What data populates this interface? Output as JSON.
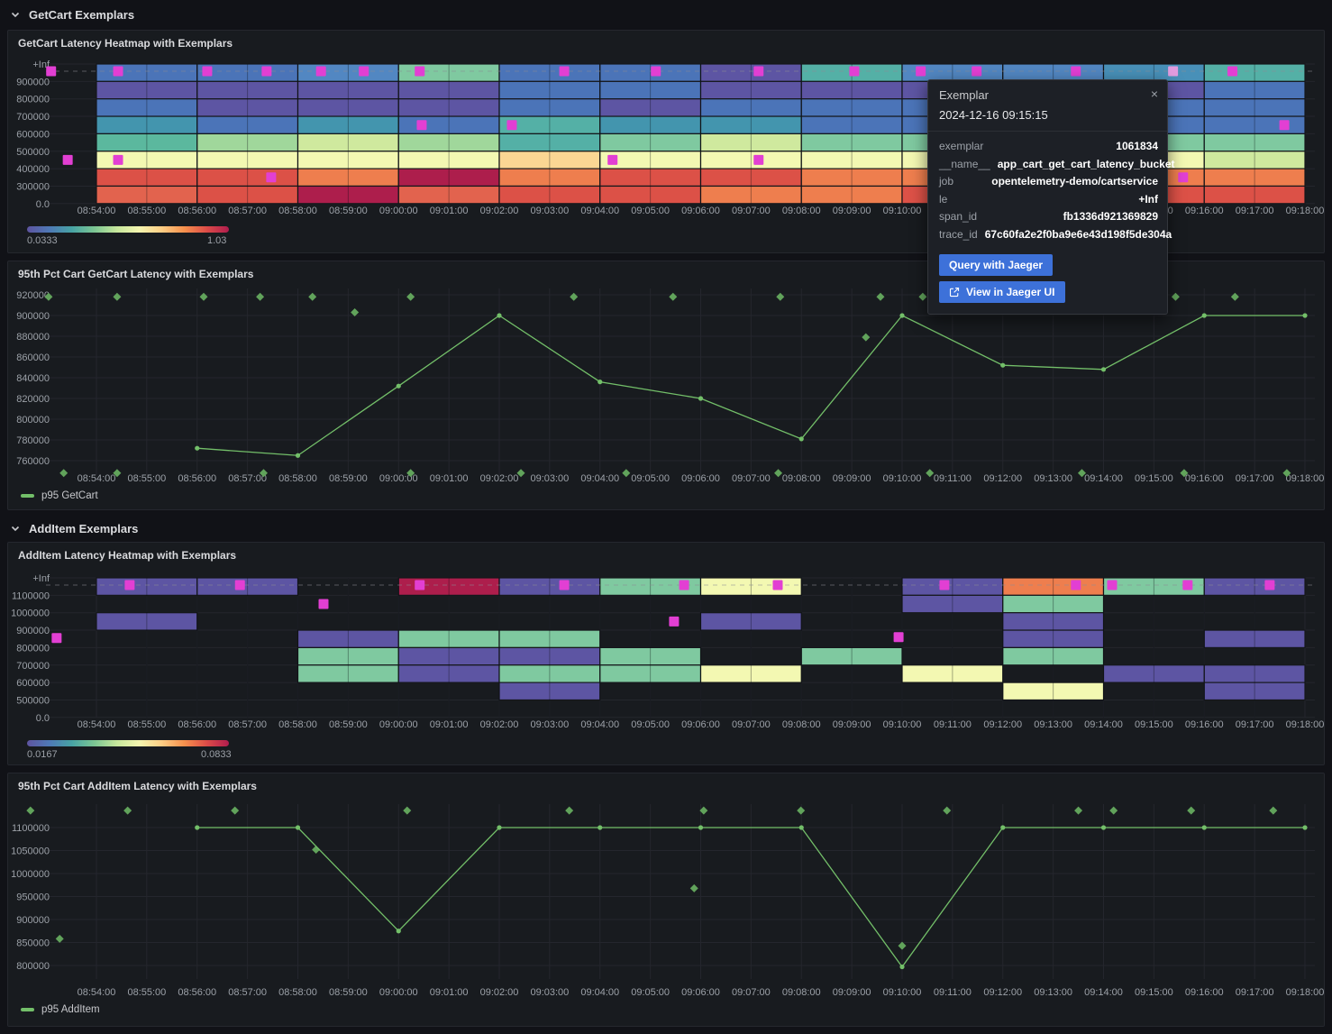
{
  "page": {
    "background": "#111217",
    "panel_background": "#181b1f",
    "panel_border": "#25272e"
  },
  "sections": [
    {
      "title": "GetCart Exemplars"
    },
    {
      "title": "AddItem Exemplars"
    }
  ],
  "time_axis": {
    "labels": [
      "08:54:00",
      "08:55:00",
      "08:56:00",
      "08:57:00",
      "08:58:00",
      "08:59:00",
      "09:00:00",
      "09:01:00",
      "09:02:00",
      "09:03:00",
      "09:04:00",
      "09:05:00",
      "09:06:00",
      "09:07:00",
      "09:08:00",
      "09:09:00",
      "09:10:00",
      "09:11:00",
      "09:12:00",
      "09:13:00",
      "09:14:00",
      "09:15:00",
      "09:16:00",
      "09:17:00",
      "09:18:00"
    ]
  },
  "palette": {
    "cells": {
      "purple": "#5d55a3",
      "blue": "#4b74b8",
      "blue2": "#5287c2",
      "blueTeal": "#4890b8",
      "teal": "#54b0a6",
      "tealDk": "#4395ae",
      "tealGreen": "#5bb89e",
      "green": "#7fc9a0",
      "greenLight": "#a0d79b",
      "paleGreen": "#cfe99e",
      "paleYellow": "#f3f8b2",
      "paleOrange": "#fbd693",
      "orange": "#ee7e4e",
      "red": "#dc5147",
      "redOrange": "#e2634e",
      "crimson": "#ad1e4c"
    },
    "gradient": [
      "#5e54a0",
      "#4e79b6",
      "#47a3a4",
      "#7cc693",
      "#c6e79c",
      "#f4f5af",
      "#fdce85",
      "#f6914d",
      "#dd4d48",
      "#b01c4e"
    ],
    "exemplar": "#e23fd3",
    "exemplar_hover": "#e19cdf",
    "series_green": "#73bf69",
    "diamond_green": "#61a35b",
    "accent_blue": "#3d71d9"
  },
  "chart_data": [
    {
      "id": "getcart_heatmap",
      "type": "heatmap",
      "title": "GetCart Latency Heatmap with Exemplars",
      "y_bucket_labels": [
        "+Inf",
        "900000",
        "800000",
        "700000",
        "600000",
        "500000",
        "400000",
        "300000",
        "0.0"
      ],
      "x_start": "08:54:00",
      "x_end": "09:18:00",
      "column_width_minutes": 2,
      "colorbar": {
        "min_label": "0.0333",
        "max_label": "1.03"
      },
      "columns_cell_colors_top_to_bottom": [
        [
          "blue",
          "purple",
          "blue",
          "tealDk",
          "tealGreen",
          "paleYellow",
          "red",
          "redOrange"
        ],
        [
          "blue",
          "purple",
          "purple",
          "blue",
          "greenLight",
          "paleYellow",
          "red",
          "red"
        ],
        [
          "blue2",
          "purple",
          "purple",
          "tealDk",
          "paleGreen",
          "paleYellow",
          "orange",
          "crimson"
        ],
        [
          "green",
          "purple",
          "purple",
          "blue",
          "greenLight",
          "paleYellow",
          "crimson",
          "redOrange"
        ],
        [
          "blue",
          "blue",
          "blue",
          "teal",
          "teal",
          "paleOrange",
          "orange",
          "red"
        ],
        [
          "blue",
          "blue",
          "purple",
          "tealDk",
          "green",
          "paleYellow",
          "red",
          "red"
        ],
        [
          "purple",
          "purple",
          "blue",
          "tealDk",
          "paleGreen",
          "paleYellow",
          "red",
          "orange"
        ],
        [
          "teal",
          "purple",
          "blue",
          "blue",
          "green",
          "paleYellow",
          "orange",
          "orange"
        ],
        [
          "blue2",
          "purple",
          "blue",
          "blue",
          "green",
          "paleYellow",
          "orange",
          "red"
        ],
        [
          "blue2",
          "purple",
          "blue",
          "teal",
          "green",
          "paleYellow",
          "orange",
          "red"
        ],
        [
          "blueTeal",
          "purple",
          "blue",
          "blue",
          "green",
          "paleYellow",
          "orange",
          "red"
        ],
        [
          "teal",
          "blue",
          "blue",
          "blue",
          "green",
          "paleGreen",
          "orange",
          "red"
        ]
      ],
      "exemplars_time_min_value": [
        [
          -0.9,
          "+Inf"
        ],
        [
          -0.57,
          450000
        ],
        [
          0.43,
          "+Inf"
        ],
        [
          0.43,
          450000
        ],
        [
          2.2,
          "+Inf"
        ],
        [
          3.38,
          "+Inf"
        ],
        [
          3.47,
          350000
        ],
        [
          4.46,
          "+Inf"
        ],
        [
          5.31,
          "+Inf"
        ],
        [
          6.42,
          "+Inf"
        ],
        [
          6.46,
          650000
        ],
        [
          8.25,
          650000
        ],
        [
          9.29,
          "+Inf"
        ],
        [
          10.25,
          450000
        ],
        [
          11.11,
          "+Inf"
        ],
        [
          13.15,
          "+Inf"
        ],
        [
          13.15,
          450000
        ],
        [
          15.05,
          "+Inf"
        ],
        [
          16.37,
          "+Inf"
        ],
        [
          17.48,
          "+Inf"
        ],
        [
          19.45,
          "+Inf"
        ],
        [
          21.58,
          350000
        ],
        [
          22.56,
          "+Inf"
        ],
        [
          23.59,
          650000
        ]
      ],
      "hovered_exemplar": [
        21.38,
        "+Inf"
      ]
    },
    {
      "id": "p95_getcart",
      "type": "line",
      "title": "95th Pct Cart GetCart Latency with Exemplars",
      "legend": "p95 GetCart",
      "y_ticks": [
        920000,
        900000,
        880000,
        860000,
        840000,
        820000,
        800000,
        780000,
        760000
      ],
      "x_minutes_after_0854": [
        2,
        4,
        6,
        8,
        10,
        12,
        14,
        16,
        18,
        20,
        22,
        24
      ],
      "values": [
        772000,
        765000,
        832000,
        900000,
        836000,
        820000,
        781000,
        900000,
        852000,
        848000,
        900000,
        900000
      ],
      "exemplar_diamonds_time_value": [
        [
          -0.95,
          918000
        ],
        [
          0.41,
          918000
        ],
        [
          2.13,
          918000
        ],
        [
          3.25,
          918000
        ],
        [
          4.29,
          918000
        ],
        [
          6.24,
          918000
        ],
        [
          9.48,
          918000
        ],
        [
          11.45,
          918000
        ],
        [
          13.58,
          918000
        ],
        [
          15.57,
          918000
        ],
        [
          16.41,
          918000
        ],
        [
          21.43,
          918000
        ],
        [
          22.61,
          918000
        ],
        [
          5.13,
          903000
        ],
        [
          15.28,
          879000
        ],
        [
          -0.65,
          748000
        ],
        [
          0.41,
          748000
        ],
        [
          3.32,
          748000
        ],
        [
          6.24,
          748000
        ],
        [
          8.43,
          748000
        ],
        [
          10.52,
          748000
        ],
        [
          13.54,
          748000
        ],
        [
          16.55,
          748000
        ],
        [
          19.57,
          748000
        ],
        [
          21.6,
          748000
        ],
        [
          23.64,
          748000
        ]
      ]
    },
    {
      "id": "additem_heatmap",
      "type": "heatmap",
      "title": "AddItem Latency Heatmap with Exemplars",
      "y_bucket_labels": [
        "+Inf",
        "1100000",
        "1000000",
        "900000",
        "800000",
        "700000",
        "600000",
        "500000",
        "0.0"
      ],
      "x_start": "08:54:00",
      "x_end": "09:18:00",
      "column_width_minutes": 2,
      "colorbar": {
        "min_label": "0.0167",
        "max_label": "0.0833"
      },
      "columns_cell_colors_top_to_bottom": [
        [
          "purple",
          null,
          "purple",
          null,
          null,
          null,
          null,
          null
        ],
        [
          "purple",
          null,
          null,
          null,
          null,
          null,
          null,
          null
        ],
        [
          null,
          null,
          null,
          "purple",
          "green",
          "green",
          null,
          null
        ],
        [
          "crimson",
          null,
          null,
          "green",
          "purple",
          "purple",
          null,
          null
        ],
        [
          "purple",
          null,
          null,
          "green",
          "purple",
          "green",
          "purple",
          null
        ],
        [
          "green",
          null,
          null,
          null,
          "green",
          "green",
          null,
          null
        ],
        [
          "paleYellow",
          null,
          "purple",
          null,
          null,
          "paleYellow",
          null,
          null
        ],
        [
          null,
          null,
          null,
          null,
          "green",
          null,
          null,
          null
        ],
        [
          "purple",
          "purple",
          null,
          null,
          null,
          "paleYellow",
          null,
          null
        ],
        [
          "orange",
          "green",
          "purple",
          "purple",
          "green",
          null,
          "paleYellow",
          null
        ],
        [
          "green",
          null,
          null,
          null,
          null,
          "purple",
          null,
          null
        ],
        [
          "purple",
          null,
          null,
          "purple",
          null,
          "purple",
          "purple",
          null
        ]
      ],
      "exemplars_time_min_value": [
        [
          -0.79,
          855000
        ],
        [
          0.66,
          "+Inf"
        ],
        [
          2.85,
          "+Inf"
        ],
        [
          4.51,
          1050000
        ],
        [
          6.42,
          "+Inf"
        ],
        [
          9.29,
          "+Inf"
        ],
        [
          11.47,
          950000
        ],
        [
          11.67,
          "+Inf"
        ],
        [
          13.53,
          "+Inf"
        ],
        [
          15.93,
          860000
        ],
        [
          16.84,
          "+Inf"
        ],
        [
          19.45,
          "+Inf"
        ],
        [
          20.17,
          "+Inf"
        ],
        [
          21.67,
          "+Inf"
        ],
        [
          23.3,
          "+Inf"
        ]
      ],
      "hovered_exemplar": null
    },
    {
      "id": "p95_additem",
      "type": "line",
      "title": "95th Pct Cart AddItem Latency with Exemplars",
      "legend": "p95 AddItem",
      "y_ticks": [
        1100000,
        1050000,
        1000000,
        950000,
        900000,
        850000,
        800000
      ],
      "x_minutes_after_0854": [
        2,
        4,
        6,
        8,
        10,
        12,
        14,
        16,
        18,
        20,
        22,
        24
      ],
      "values": [
        1100000,
        1100000,
        875000,
        1100000,
        1100000,
        1100000,
        1100000,
        797000,
        1100000,
        1100000,
        1100000,
        1100000
      ],
      "exemplar_diamonds_time_value": [
        [
          -1.31,
          1137000
        ],
        [
          0.62,
          1137000
        ],
        [
          2.75,
          1137000
        ],
        [
          6.17,
          1137000
        ],
        [
          9.39,
          1137000
        ],
        [
          12.06,
          1137000
        ],
        [
          13.99,
          1137000
        ],
        [
          16.89,
          1137000
        ],
        [
          19.5,
          1137000
        ],
        [
          20.2,
          1137000
        ],
        [
          21.74,
          1137000
        ],
        [
          23.37,
          1137000
        ],
        [
          -0.73,
          858000
        ],
        [
          4.36,
          1052000
        ],
        [
          11.87,
          968000
        ],
        [
          16.0,
          843000
        ]
      ]
    }
  ],
  "tooltip": {
    "title": "Exemplar",
    "close_glyph": "×",
    "timestamp": "2024-12-16 09:15:15",
    "fields": [
      {
        "label": "exemplar",
        "value": "1061834"
      },
      {
        "label": "__name__",
        "value": "app_cart_get_cart_latency_bucket"
      },
      {
        "label": "job",
        "value": "opentelemetry-demo/cartservice"
      },
      {
        "label": "le",
        "value": "+Inf"
      },
      {
        "label": "span_id",
        "value": "fb1336d921369829"
      },
      {
        "label": "trace_id",
        "value": "67c60fa2e2f0ba9e6e43d198f5de304a"
      }
    ],
    "buttons": [
      {
        "label": "Query with Jaeger",
        "icon": null
      },
      {
        "label": "View in Jaeger UI",
        "icon": "external-link-icon"
      }
    ]
  }
}
